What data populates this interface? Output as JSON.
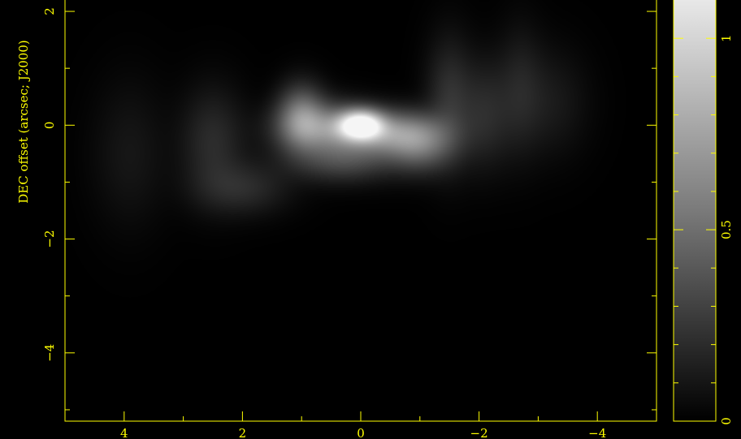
{
  "chart_data": {
    "type": "heatmap",
    "xlabel": "",
    "ylabel": "DEC offset (arcsec; J2000)",
    "xlim": [
      5,
      -5
    ],
    "ylim": [
      -5.2,
      2.2
    ],
    "x_ticks": [
      4,
      2,
      0,
      -2,
      -4
    ],
    "x_tick_labels": [
      "4",
      "2",
      "0",
      "−2",
      "−4"
    ],
    "y_ticks": [
      2,
      0,
      -2,
      -4
    ],
    "y_tick_labels": [
      "2",
      "0",
      "−2",
      "−4"
    ],
    "grid": false,
    "colormap": "grayscale",
    "colorbar": {
      "range": [
        0,
        1.1
      ],
      "ticks": [
        0,
        0.5,
        1
      ],
      "tick_labels": [
        "0",
        "0.5",
        "1"
      ]
    },
    "peak": {
      "x": 0,
      "y": 0,
      "value": 1.1
    },
    "emission_components": [
      {
        "x": 0.0,
        "y": 0.0,
        "value": 1.0,
        "sigma_x": 0.25,
        "sigma_y": 0.17
      },
      {
        "x": -0.5,
        "y": -0.15,
        "value": 0.45,
        "sigma_x": 0.55,
        "sigma_y": 0.25
      },
      {
        "x": 0.6,
        "y": -0.05,
        "value": 0.4,
        "sigma_x": 0.5,
        "sigma_y": 0.28
      },
      {
        "x": 1.0,
        "y": 0.15,
        "value": 0.35,
        "sigma_x": 0.25,
        "sigma_y": 0.35
      },
      {
        "x": -1.0,
        "y": -0.35,
        "value": 0.28,
        "sigma_x": 0.35,
        "sigma_y": 0.3
      },
      {
        "x": 0.3,
        "y": -0.6,
        "value": 0.2,
        "sigma_x": 0.6,
        "sigma_y": 0.25
      },
      {
        "x": 2.5,
        "y": -0.3,
        "value": 0.1,
        "sigma_x": 0.35,
        "sigma_y": 0.6
      },
      {
        "x": 2.0,
        "y": -1.1,
        "value": 0.1,
        "sigma_x": 0.5,
        "sigma_y": 0.3
      },
      {
        "x": -1.5,
        "y": 0.4,
        "value": 0.12,
        "sigma_x": 0.25,
        "sigma_y": 0.7
      },
      {
        "x": -2.1,
        "y": 0.2,
        "value": 0.1,
        "sigma_x": 0.3,
        "sigma_y": 0.6
      },
      {
        "x": -2.7,
        "y": 0.6,
        "value": 0.07,
        "sigma_x": 0.25,
        "sigma_y": 0.7
      },
      {
        "x": -3.2,
        "y": 0.4,
        "value": 0.05,
        "sigma_x": 0.4,
        "sigma_y": 0.6
      },
      {
        "x": 3.9,
        "y": -0.5,
        "value": 0.04,
        "sigma_x": 0.4,
        "sigma_y": 0.8
      }
    ],
    "colors": {
      "axis": "#ffff00",
      "background": "#000000"
    }
  }
}
